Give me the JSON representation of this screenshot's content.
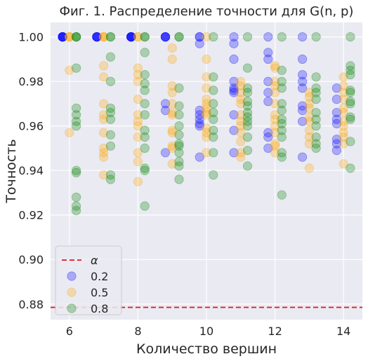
{
  "chart_data": {
    "type": "scatter",
    "title": "Фиг. 1. Распределение точности для G(n, p)",
    "xlabel": "Количество вершин",
    "ylabel": "Точность",
    "xlim": [
      5.45,
      14.55
    ],
    "ylim": [
      0.873,
      1.0065
    ],
    "xticks": [
      6,
      8,
      10,
      12,
      14
    ],
    "yticks": [
      0.88,
      0.9,
      0.92,
      0.94,
      0.96,
      0.98,
      1.0
    ],
    "xtick_labels": [
      "6",
      "8",
      "10",
      "12",
      "14"
    ],
    "ytick_labels": [
      "0.88",
      "0.90",
      "0.92",
      "0.94",
      "0.96",
      "0.98",
      "1.00"
    ],
    "grid": true,
    "legend_position": "lower-left",
    "alpha_line": {
      "label": "α",
      "value": 0.8785,
      "color": "#e0161b",
      "style": "dashed"
    },
    "series": [
      {
        "name": "0.2",
        "color": "#0000ff",
        "points": [
          [
            5.8,
            1.0
          ],
          [
            5.8,
            1.0
          ],
          [
            5.8,
            1.0
          ],
          [
            5.8,
            1.0
          ],
          [
            5.8,
            1.0
          ],
          [
            5.8,
            1.0
          ],
          [
            6.8,
            1.0
          ],
          [
            6.8,
            1.0
          ],
          [
            6.8,
            1.0
          ],
          [
            6.8,
            1.0
          ],
          [
            6.8,
            1.0
          ],
          [
            7.8,
            1.0
          ],
          [
            7.8,
            1.0
          ],
          [
            7.8,
            1.0
          ],
          [
            7.8,
            1.0
          ],
          [
            7.8,
            1.0
          ],
          [
            7.8,
            1.0
          ],
          [
            8.8,
            1.0
          ],
          [
            8.8,
            1.0
          ],
          [
            8.8,
            1.0
          ],
          [
            8.8,
            1.0
          ],
          [
            8.8,
            0.97
          ],
          [
            8.8,
            0.967
          ],
          [
            8.8,
            0.948
          ],
          [
            9.8,
            1.0
          ],
          [
            9.8,
            1.0
          ],
          [
            9.8,
            0.997
          ],
          [
            9.8,
            0.967
          ],
          [
            9.8,
            0.965
          ],
          [
            9.8,
            0.963
          ],
          [
            9.8,
            0.961
          ],
          [
            9.8,
            0.96
          ],
          [
            9.8,
            0.946
          ],
          [
            10.8,
            1.0
          ],
          [
            10.8,
            0.997
          ],
          [
            10.8,
            0.99
          ],
          [
            10.8,
            0.98
          ],
          [
            10.8,
            0.977
          ],
          [
            10.8,
            0.976
          ],
          [
            10.8,
            0.975
          ],
          [
            10.8,
            0.965
          ],
          [
            10.8,
            0.958
          ],
          [
            10.8,
            0.948
          ],
          [
            11.8,
            1.0
          ],
          [
            11.8,
            0.993
          ],
          [
            11.8,
            0.99
          ],
          [
            11.8,
            0.98
          ],
          [
            11.8,
            0.975
          ],
          [
            11.8,
            0.971
          ],
          [
            11.8,
            0.957
          ],
          [
            11.8,
            0.955
          ],
          [
            11.8,
            0.95
          ],
          [
            12.8,
            1.0
          ],
          [
            12.8,
            0.99
          ],
          [
            12.8,
            0.983
          ],
          [
            12.8,
            0.98
          ],
          [
            12.8,
            0.977
          ],
          [
            12.8,
            0.969
          ],
          [
            12.8,
            0.967
          ],
          [
            12.8,
            0.962
          ],
          [
            12.8,
            0.946
          ],
          [
            13.8,
            0.977
          ],
          [
            13.8,
            0.972
          ],
          [
            13.8,
            0.966
          ],
          [
            13.8,
            0.963
          ],
          [
            13.8,
            0.961
          ],
          [
            13.8,
            0.954
          ],
          [
            13.8,
            0.952
          ],
          [
            13.8,
            0.949
          ]
        ]
      },
      {
        "name": "0.5",
        "color": "#ffa500",
        "points": [
          [
            6.0,
            1.0
          ],
          [
            6.0,
            1.0
          ],
          [
            6.0,
            1.0
          ],
          [
            6.0,
            0.985
          ],
          [
            6.0,
            0.957
          ],
          [
            7.0,
            1.0
          ],
          [
            7.0,
            1.0
          ],
          [
            7.0,
            1.0
          ],
          [
            7.0,
            0.987
          ],
          [
            7.0,
            0.982
          ],
          [
            7.0,
            0.97
          ],
          [
            7.0,
            0.965
          ],
          [
            7.0,
            0.963
          ],
          [
            7.0,
            0.957
          ],
          [
            7.0,
            0.95
          ],
          [
            7.0,
            0.948
          ],
          [
            7.0,
            0.946
          ],
          [
            7.0,
            0.938
          ],
          [
            8.0,
            1.0
          ],
          [
            8.0,
            1.0
          ],
          [
            8.0,
            0.986
          ],
          [
            8.0,
            0.983
          ],
          [
            8.0,
            0.98
          ],
          [
            8.0,
            0.972
          ],
          [
            8.0,
            0.965
          ],
          [
            8.0,
            0.962
          ],
          [
            8.0,
            0.96
          ],
          [
            8.0,
            0.955
          ],
          [
            8.0,
            0.948
          ],
          [
            8.0,
            0.944
          ],
          [
            8.0,
            0.935
          ],
          [
            9.0,
            0.995
          ],
          [
            9.0,
            0.99
          ],
          [
            9.0,
            0.978
          ],
          [
            9.0,
            0.975
          ],
          [
            9.0,
            0.97
          ],
          [
            9.0,
            0.966
          ],
          [
            9.0,
            0.965
          ],
          [
            9.0,
            0.958
          ],
          [
            9.0,
            0.957
          ],
          [
            9.0,
            0.951
          ],
          [
            9.0,
            0.95
          ],
          [
            9.0,
            0.943
          ],
          [
            10.0,
            1.0
          ],
          [
            10.0,
            0.99
          ],
          [
            10.0,
            0.982
          ],
          [
            10.0,
            0.977
          ],
          [
            10.0,
            0.972
          ],
          [
            10.0,
            0.97
          ],
          [
            10.0,
            0.968
          ],
          [
            10.0,
            0.966
          ],
          [
            10.0,
            0.965
          ],
          [
            10.0,
            0.959
          ],
          [
            10.0,
            0.957
          ],
          [
            10.0,
            0.955
          ],
          [
            10.0,
            0.948
          ],
          [
            11.0,
            0.98
          ],
          [
            11.0,
            0.978
          ],
          [
            11.0,
            0.975
          ],
          [
            11.0,
            0.972
          ],
          [
            11.0,
            0.97
          ],
          [
            11.0,
            0.965
          ],
          [
            11.0,
            0.962
          ],
          [
            11.0,
            0.96
          ],
          [
            11.0,
            0.957
          ],
          [
            11.0,
            0.953
          ],
          [
            11.0,
            0.948
          ],
          [
            11.0,
            0.946
          ],
          [
            12.0,
            0.987
          ],
          [
            12.0,
            0.986
          ],
          [
            12.0,
            0.98
          ],
          [
            12.0,
            0.978
          ],
          [
            12.0,
            0.975
          ],
          [
            12.0,
            0.97
          ],
          [
            12.0,
            0.965
          ],
          [
            12.0,
            0.963
          ],
          [
            12.0,
            0.96
          ],
          [
            12.0,
            0.957
          ],
          [
            12.0,
            0.952
          ],
          [
            12.0,
            0.951
          ],
          [
            12.0,
            0.948
          ],
          [
            13.0,
            0.975
          ],
          [
            13.0,
            0.973
          ],
          [
            13.0,
            0.97
          ],
          [
            13.0,
            0.968
          ],
          [
            13.0,
            0.964
          ],
          [
            13.0,
            0.962
          ],
          [
            13.0,
            0.958
          ],
          [
            13.0,
            0.955
          ],
          [
            13.0,
            0.952
          ],
          [
            13.0,
            0.941
          ],
          [
            14.0,
            0.982
          ],
          [
            14.0,
            0.978
          ],
          [
            14.0,
            0.975
          ],
          [
            14.0,
            0.972
          ],
          [
            14.0,
            0.968
          ],
          [
            14.0,
            0.966
          ],
          [
            14.0,
            0.962
          ],
          [
            14.0,
            0.96
          ],
          [
            14.0,
            0.957
          ],
          [
            14.0,
            0.955
          ],
          [
            14.0,
            0.952
          ],
          [
            14.0,
            0.943
          ]
        ]
      },
      {
        "name": "0.8",
        "color": "#008000",
        "points": [
          [
            6.2,
            1.0
          ],
          [
            6.2,
            1.0
          ],
          [
            6.2,
            1.0
          ],
          [
            6.2,
            0.986
          ],
          [
            6.2,
            0.968
          ],
          [
            6.2,
            0.965
          ],
          [
            6.2,
            0.962
          ],
          [
            6.2,
            0.96
          ],
          [
            6.2,
            0.94
          ],
          [
            6.2,
            0.939
          ],
          [
            6.2,
            0.928
          ],
          [
            6.2,
            0.924
          ],
          [
            6.2,
            0.922
          ],
          [
            7.2,
            1.0
          ],
          [
            7.2,
            1.0
          ],
          [
            7.2,
            0.991
          ],
          [
            7.2,
            0.98
          ],
          [
            7.2,
            0.968
          ],
          [
            7.2,
            0.966
          ],
          [
            7.2,
            0.963
          ],
          [
            7.2,
            0.956
          ],
          [
            7.2,
            0.951
          ],
          [
            7.2,
            0.938
          ],
          [
            7.2,
            0.936
          ],
          [
            8.2,
            1.0
          ],
          [
            8.2,
            1.0
          ],
          [
            8.2,
            0.993
          ],
          [
            8.2,
            0.983
          ],
          [
            8.2,
            0.979
          ],
          [
            8.2,
            0.976
          ],
          [
            8.2,
            0.97
          ],
          [
            8.2,
            0.965
          ],
          [
            8.2,
            0.958
          ],
          [
            8.2,
            0.955
          ],
          [
            8.2,
            0.95
          ],
          [
            8.2,
            0.941
          ],
          [
            8.2,
            0.94
          ],
          [
            8.2,
            0.924
          ],
          [
            9.2,
            1.0
          ],
          [
            9.2,
            1.0
          ],
          [
            9.2,
            0.977
          ],
          [
            9.2,
            0.969
          ],
          [
            9.2,
            0.965
          ],
          [
            9.2,
            0.96
          ],
          [
            9.2,
            0.956
          ],
          [
            9.2,
            0.952
          ],
          [
            9.2,
            0.951
          ],
          [
            9.2,
            0.948
          ],
          [
            9.2,
            0.944
          ],
          [
            9.2,
            0.942
          ],
          [
            9.2,
            0.936
          ],
          [
            10.2,
            1.0
          ],
          [
            10.2,
            0.982
          ],
          [
            10.2,
            0.976
          ],
          [
            10.2,
            0.97
          ],
          [
            10.2,
            0.966
          ],
          [
            10.2,
            0.963
          ],
          [
            10.2,
            0.958
          ],
          [
            10.2,
            0.955
          ],
          [
            10.2,
            0.948
          ],
          [
            10.2,
            0.938
          ],
          [
            11.2,
            1.0
          ],
          [
            11.2,
            0.986
          ],
          [
            11.2,
            0.977
          ],
          [
            11.2,
            0.975
          ],
          [
            11.2,
            0.971
          ],
          [
            11.2,
            0.969
          ],
          [
            11.2,
            0.966
          ],
          [
            11.2,
            0.964
          ],
          [
            11.2,
            0.962
          ],
          [
            11.2,
            0.96
          ],
          [
            11.2,
            0.955
          ],
          [
            11.2,
            0.949
          ],
          [
            11.2,
            0.942
          ],
          [
            12.2,
            1.0
          ],
          [
            12.2,
            0.985
          ],
          [
            12.2,
            0.98
          ],
          [
            12.2,
            0.977
          ],
          [
            12.2,
            0.97
          ],
          [
            12.2,
            0.967
          ],
          [
            12.2,
            0.963
          ],
          [
            12.2,
            0.961
          ],
          [
            12.2,
            0.958
          ],
          [
            12.2,
            0.955
          ],
          [
            12.2,
            0.948
          ],
          [
            12.2,
            0.946
          ],
          [
            12.2,
            0.929
          ],
          [
            13.2,
            1.0
          ],
          [
            13.2,
            0.982
          ],
          [
            13.2,
            0.977
          ],
          [
            13.2,
            0.975
          ],
          [
            13.2,
            0.972
          ],
          [
            13.2,
            0.966
          ],
          [
            13.2,
            0.963
          ],
          [
            13.2,
            0.96
          ],
          [
            13.2,
            0.955
          ],
          [
            13.2,
            0.952
          ],
          [
            13.2,
            0.95
          ],
          [
            14.2,
            1.0
          ],
          [
            14.2,
            0.987
          ],
          [
            14.2,
            0.985
          ],
          [
            14.2,
            0.983
          ],
          [
            14.2,
            0.976
          ],
          [
            14.2,
            0.975
          ],
          [
            14.2,
            0.971
          ],
          [
            14.2,
            0.97
          ],
          [
            14.2,
            0.964
          ],
          [
            14.2,
            0.963
          ],
          [
            14.2,
            0.953
          ],
          [
            14.2,
            0.941
          ]
        ]
      }
    ]
  }
}
